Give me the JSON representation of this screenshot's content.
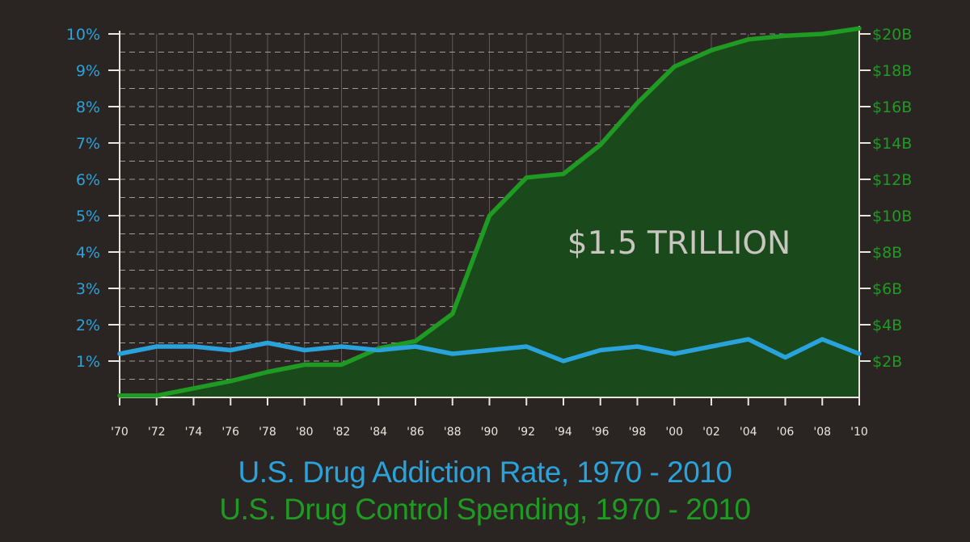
{
  "colors": {
    "background": "#2a2522",
    "addiction": "#2aa3dc",
    "spending": "#1f9a22",
    "spending_fill": "#1a4a1c",
    "axis": "#e9e6de",
    "grid": "#bdbab4",
    "annotation": "#c9c6bf"
  },
  "chart_data": {
    "type": "line",
    "title": "",
    "x": [
      "'70",
      "'72",
      "'74",
      "'76",
      "'78",
      "'80",
      "'82",
      "'84",
      "'86",
      "'88",
      "'90",
      "'92",
      "'94",
      "'96",
      "'98",
      "'00",
      "'02",
      "'04",
      "'06",
      "'08",
      "'10"
    ],
    "xlabel": "",
    "y_left": {
      "ticks": [
        "1%",
        "2%",
        "3%",
        "4%",
        "5%",
        "6%",
        "7%",
        "8%",
        "9%",
        "10%"
      ],
      "ylim": [
        0,
        10
      ]
    },
    "y_right": {
      "ticks": [
        "$2B",
        "$4B",
        "$6B",
        "$8B",
        "$10B",
        "$12B",
        "$14B",
        "$16B",
        "$18B",
        "$20B"
      ],
      "ylim": [
        0,
        20
      ]
    },
    "grid": true,
    "series": [
      {
        "axis": "right",
        "unit": "billions USD",
        "values": [
          0.1,
          0.1,
          0.5,
          0.9,
          1.4,
          1.8,
          1.8,
          2.7,
          3.1,
          4.6,
          10.0,
          12.1,
          12.3,
          13.9,
          16.2,
          18.2,
          19.1,
          19.7,
          19.9,
          20.0,
          20.3
        ]
      },
      {
        "axis": "left",
        "unit": "percent",
        "values": [
          1.2,
          1.4,
          1.4,
          1.3,
          1.5,
          1.3,
          1.4,
          1.3,
          1.4,
          1.2,
          1.3,
          1.4,
          1.0,
          1.3,
          1.4,
          1.2,
          1.4,
          1.6,
          1.1,
          1.6,
          1.2
        ]
      }
    ],
    "annotation": "$1.5 TRILLION",
    "captions": [
      "U.S. Drug Addiction Rate, 1970 - 2010",
      "U.S. Drug Control Spending, 1970 - 2010"
    ]
  }
}
